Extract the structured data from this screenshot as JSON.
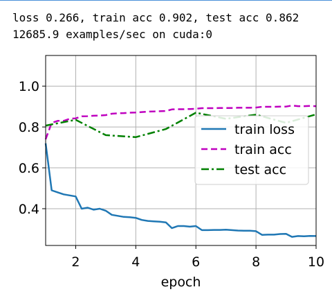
{
  "output": {
    "line1": "loss 0.266, train acc 0.902, test acc 0.862",
    "line2": "12685.9 examples/sec on cuda:0"
  },
  "chart_data": {
    "type": "line",
    "xlabel": "epoch",
    "ylabel": "",
    "xlim": [
      1,
      10
    ],
    "ylim": [
      0.22,
      1.15
    ],
    "xticks": [
      2,
      4,
      6,
      8,
      10
    ],
    "yticks": [
      0.4,
      0.6,
      0.8,
      1.0
    ],
    "grid": true,
    "legend_position": "center-right",
    "series": [
      {
        "name": "train loss",
        "color": "#1f77b4",
        "style": "solid",
        "x": [
          1.0,
          1.2,
          1.4,
          1.6,
          1.8,
          2.0,
          2.2,
          2.4,
          2.6,
          2.8,
          3.0,
          3.2,
          3.4,
          3.6,
          3.8,
          4.0,
          4.2,
          4.4,
          4.6,
          4.8,
          5.0,
          5.2,
          5.4,
          5.6,
          5.8,
          6.0,
          6.2,
          6.4,
          6.6,
          6.8,
          7.0,
          7.2,
          7.4,
          7.6,
          7.8,
          8.0,
          8.2,
          8.4,
          8.6,
          8.8,
          9.0,
          9.2,
          9.4,
          9.6,
          9.8,
          10.0
        ],
        "values": [
          0.72,
          0.49,
          0.48,
          0.47,
          0.465,
          0.46,
          0.4,
          0.405,
          0.395,
          0.4,
          0.39,
          0.37,
          0.365,
          0.36,
          0.358,
          0.355,
          0.345,
          0.34,
          0.338,
          0.336,
          0.333,
          0.305,
          0.315,
          0.315,
          0.312,
          0.315,
          0.295,
          0.295,
          0.296,
          0.296,
          0.297,
          0.295,
          0.293,
          0.292,
          0.292,
          0.29,
          0.272,
          0.273,
          0.273,
          0.276,
          0.277,
          0.262,
          0.266,
          0.265,
          0.267,
          0.266
        ]
      },
      {
        "name": "train acc",
        "color": "#bf00bf",
        "style": "dashed",
        "x": [
          1.0,
          1.2,
          1.4,
          1.6,
          1.8,
          2.0,
          2.2,
          2.4,
          2.6,
          2.8,
          3.0,
          3.2,
          3.4,
          3.6,
          3.8,
          4.0,
          4.2,
          4.4,
          4.6,
          4.8,
          5.0,
          5.2,
          5.4,
          5.6,
          5.8,
          6.0,
          6.2,
          6.4,
          6.6,
          6.8,
          7.0,
          7.2,
          7.4,
          7.6,
          7.8,
          8.0,
          8.2,
          8.4,
          8.6,
          8.8,
          9.0,
          9.2,
          9.4,
          9.6,
          9.8,
          10.0
        ],
        "values": [
          0.74,
          0.82,
          0.83,
          0.83,
          0.84,
          0.842,
          0.852,
          0.853,
          0.855,
          0.856,
          0.858,
          0.865,
          0.867,
          0.868,
          0.87,
          0.871,
          0.873,
          0.875,
          0.876,
          0.877,
          0.878,
          0.886,
          0.887,
          0.887,
          0.888,
          0.889,
          0.892,
          0.892,
          0.892,
          0.893,
          0.893,
          0.893,
          0.894,
          0.894,
          0.894,
          0.895,
          0.899,
          0.899,
          0.899,
          0.9,
          0.9,
          0.905,
          0.902,
          0.902,
          0.903,
          0.902
        ]
      },
      {
        "name": "test acc",
        "color": "#008000",
        "style": "dashdot",
        "x": [
          1,
          2,
          3,
          4,
          5,
          6,
          7,
          8,
          9,
          10
        ],
        "values": [
          0.807,
          0.835,
          0.76,
          0.75,
          0.79,
          0.87,
          0.84,
          0.86,
          0.82,
          0.862
        ]
      }
    ]
  }
}
